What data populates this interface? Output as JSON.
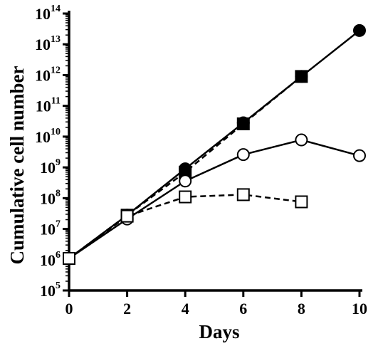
{
  "chart_data": {
    "type": "line",
    "xlabel": "Days",
    "ylabel": "Cumulative cell number",
    "xlim": [
      0,
      10
    ],
    "ylim_log10": [
      5,
      14
    ],
    "y_scale": "log",
    "grid": false,
    "x_ticks": [
      0,
      2,
      4,
      6,
      8,
      10
    ],
    "x_tick_labels": [
      "0",
      "2",
      "4",
      "6",
      "8",
      "10"
    ],
    "y_ticks_exponent": [
      5,
      6,
      7,
      8,
      9,
      10,
      11,
      12,
      13,
      14
    ],
    "y_tick_base": "10",
    "series": [
      {
        "marker": "filled-circle",
        "line": "solid",
        "x": [
          0,
          2,
          4,
          6,
          8,
          10
        ],
        "y": [
          1100000.0,
          28000000.0,
          900000000.0,
          28000000000.0,
          900000000000.0,
          28000000000000.0
        ]
      },
      {
        "marker": "filled-square",
        "line": "dashed",
        "x": [
          0,
          2,
          4,
          6,
          8
        ],
        "y": [
          1100000.0,
          28000000.0,
          700000000.0,
          26000000000.0,
          900000000000.0
        ]
      },
      {
        "marker": "open-circle",
        "line": "solid",
        "x": [
          0,
          2,
          4,
          6,
          8,
          10
        ],
        "y": [
          1100000.0,
          21000000.0,
          360000000.0,
          2600000000.0,
          7800000000.0,
          2400000000.0
        ]
      },
      {
        "marker": "open-square",
        "line": "dashed",
        "x": [
          0,
          2,
          4,
          6,
          8
        ],
        "y": [
          1100000.0,
          26000000.0,
          110000000.0,
          130000000.0,
          76000000.0
        ]
      }
    ]
  }
}
